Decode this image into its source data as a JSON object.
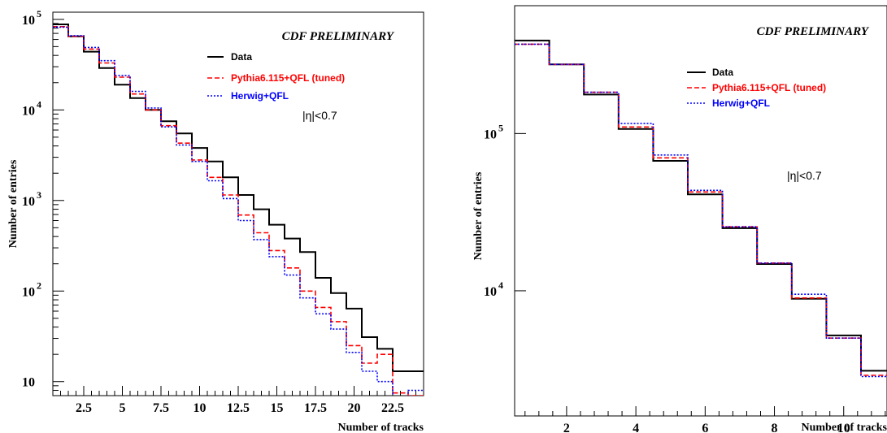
{
  "chart_data": [
    {
      "type": "line",
      "step": true,
      "title": "CDF PRELIMINARY",
      "xlabel": "Number of tracks",
      "ylabel": "Number of entries",
      "annotation": "|η|<0.7",
      "x_scale": "linear",
      "y_scale": "log",
      "xlim": [
        0.5,
        24.5
      ],
      "ylim": [
        7,
        120000
      ],
      "x_ticks": [
        2.5,
        5,
        7.5,
        10,
        12.5,
        15,
        17.5,
        20,
        22.5
      ],
      "x_tick_labels": [
        "2.5",
        "5",
        "7.5",
        "10",
        "12.5",
        "15",
        "17.5",
        "20",
        "22.5"
      ],
      "y_ticks": [
        {
          "value": 10,
          "base": "10",
          "exp": ""
        },
        {
          "value": 100,
          "base": "10",
          "exp": "2"
        },
        {
          "value": 1000,
          "base": "10",
          "exp": "3"
        },
        {
          "value": 10000,
          "base": "10",
          "exp": "4"
        },
        {
          "value": 100000,
          "base": "10",
          "exp": "5"
        }
      ],
      "bin_edges": [
        0.5,
        1.5,
        2.5,
        3.5,
        4.5,
        5.5,
        6.5,
        7.5,
        8.5,
        9.5,
        10.5,
        11.5,
        12.5,
        13.5,
        14.5,
        15.5,
        16.5,
        17.5,
        18.5,
        19.5,
        20.5,
        21.5,
        22.5,
        23.5,
        24.5
      ],
      "legend_position": "top-right",
      "series": [
        {
          "name": "Data",
          "color": "#000000",
          "dash": "solid",
          "values": [
            88000,
            65000,
            44000,
            29000,
            19000,
            13500,
            10000,
            7500,
            5500,
            3800,
            2700,
            1800,
            1150,
            800,
            540,
            380,
            270,
            140,
            95,
            64,
            31,
            23,
            13,
            13
          ]
        },
        {
          "name": "Pythia6.115+QFL (tuned)",
          "color": "#ff0000",
          "dash": "dashed",
          "values": [
            83000,
            65000,
            47000,
            33000,
            23000,
            15000,
            10000,
            6700,
            4300,
            2800,
            1800,
            1150,
            690,
            440,
            280,
            180,
            100,
            66,
            46,
            25,
            16,
            20,
            7.5,
            7
          ]
        },
        {
          "name": "Herwig+QFL",
          "color": "#0000ff",
          "dash": "dotted",
          "values": [
            82000,
            66000,
            49000,
            35000,
            24000,
            16000,
            10500,
            6500,
            4100,
            2700,
            1650,
            1050,
            600,
            370,
            240,
            150,
            84,
            56,
            38,
            21,
            13,
            10,
            6,
            8
          ]
        }
      ]
    },
    {
      "type": "line",
      "step": true,
      "title": "CDF PRELIMINARY",
      "xlabel": "Number of tracks",
      "ylabel": "Number of entries",
      "annotation": "|η|<0.7",
      "x_scale": "linear",
      "y_scale": "log",
      "xlim": [
        0.5,
        11.25
      ],
      "ylim": [
        1600,
        650000
      ],
      "x_ticks": [
        2,
        4,
        6,
        8,
        10
      ],
      "x_tick_labels": [
        "2",
        "4",
        "6",
        "8",
        "10"
      ],
      "y_ticks": [
        {
          "value": 10000,
          "base": "10",
          "exp": "4"
        },
        {
          "value": 100000,
          "base": "10",
          "exp": "5"
        }
      ],
      "bin_edges": [
        0.5,
        1.5,
        2.5,
        3.5,
        4.5,
        5.5,
        6.5,
        7.5,
        8.5,
        9.5,
        10.5,
        11.5
      ],
      "legend_position": "top-right",
      "series": [
        {
          "name": "Data",
          "color": "#000000",
          "dash": "solid",
          "values": [
            390000,
            275000,
            177000,
            107000,
            67000,
            41000,
            25000,
            14800,
            8900,
            5200,
            3100
          ]
        },
        {
          "name": "Pythia6.115+QFL (tuned)",
          "color": "#ff0000",
          "dash": "dashed",
          "values": [
            370000,
            275000,
            183000,
            110000,
            70000,
            42500,
            25500,
            15000,
            9000,
            5000,
            2900
          ]
        },
        {
          "name": "Herwig+QFL",
          "color": "#0000ff",
          "dash": "dotted",
          "values": [
            370000,
            275000,
            183000,
            116000,
            73000,
            43500,
            25500,
            15000,
            9500,
            5000,
            2850
          ]
        }
      ]
    }
  ]
}
